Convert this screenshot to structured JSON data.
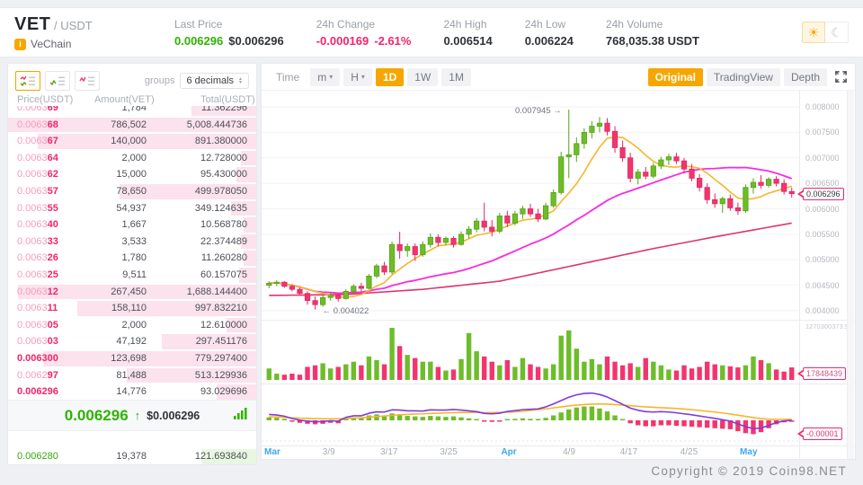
{
  "header": {
    "base": "VET",
    "separator": "/",
    "quote": "USDT",
    "coin_badge": "i",
    "coin_name": "VeChain",
    "stats": [
      {
        "label": "Last Price",
        "value": "0.006296",
        "value2": "$0.006296",
        "color": "green",
        "color2": "dark"
      },
      {
        "label": "24h Change",
        "value": "-0.000169",
        "value2": "-2.61%",
        "color": "red",
        "color2": "red"
      },
      {
        "label": "24h High",
        "value": "0.006514"
      },
      {
        "label": "24h Low",
        "value": "0.006224"
      },
      {
        "label": "24h Volume",
        "value": "768,035.38 USDT"
      }
    ],
    "theme": {
      "light_icon": "☀",
      "dark_icon": "☾"
    }
  },
  "orderbook": {
    "view_icons": [
      {
        "name": "orderbook-both-icon",
        "active": true
      },
      {
        "name": "orderbook-bids-icon",
        "active": false
      },
      {
        "name": "orderbook-asks-icon",
        "active": false
      }
    ],
    "groups_label": "groups",
    "decimals_value": "6 decimals",
    "columns": [
      "Price(USDT)",
      "Amount(VET)",
      "Total(USDT)"
    ],
    "asks": [
      {
        "price": "0.006369",
        "amount": "1,784",
        "total": "11.362296",
        "depth": 26
      },
      {
        "price": "0.006368",
        "amount": "786,502",
        "total": "5,008.444736",
        "depth": 100
      },
      {
        "price": "0.006367",
        "amount": "140,000",
        "total": "891.380000",
        "depth": 88
      },
      {
        "price": "0.006364",
        "amount": "2,000",
        "total": "12.728000",
        "depth": 6
      },
      {
        "price": "0.006362",
        "amount": "15,000",
        "total": "95.430000",
        "depth": 8
      },
      {
        "price": "0.006357",
        "amount": "78,650",
        "total": "499.978050",
        "depth": 55
      },
      {
        "price": "0.006355",
        "amount": "54,937",
        "total": "349.124635",
        "depth": 10
      },
      {
        "price": "0.006340",
        "amount": "1,667",
        "total": "10.568780",
        "depth": 5
      },
      {
        "price": "0.006333",
        "amount": "3,533",
        "total": "22.374489",
        "depth": 6
      },
      {
        "price": "0.006326",
        "amount": "1,780",
        "total": "11.260280",
        "depth": 5
      },
      {
        "price": "0.006325",
        "amount": "9,511",
        "total": "60.157075",
        "depth": 7
      },
      {
        "price": "0.006312",
        "amount": "267,450",
        "total": "1,688.144400",
        "depth": 96
      },
      {
        "price": "0.006311",
        "amount": "158,110",
        "total": "997.832210",
        "depth": 72
      },
      {
        "price": "0.006305",
        "amount": "2,000",
        "total": "12.610000",
        "depth": 12
      },
      {
        "price": "0.006303",
        "amount": "47,192",
        "total": "297.451176",
        "depth": 38
      },
      {
        "price": "0.006300",
        "amount": "123,698",
        "total": "779.297400",
        "depth": 86,
        "strong": true
      },
      {
        "price": "0.006297",
        "amount": "81,488",
        "total": "513.129936",
        "depth": 52
      },
      {
        "price": "0.006296",
        "amount": "14,776",
        "total": "93.029696",
        "depth": 16,
        "strong": true
      }
    ],
    "last": {
      "price": "0.006296",
      "arrow": "↑",
      "usd": "$0.006296"
    },
    "bids": [
      {
        "price": "0.006280",
        "amount": "19,378",
        "total": "121.693840",
        "depth": 22
      }
    ]
  },
  "chart_toolbar": {
    "time_label": "Time",
    "intervals": [
      {
        "label": "m",
        "caret": true,
        "active": false
      },
      {
        "label": "H",
        "caret": true,
        "active": false
      },
      {
        "label": "1D",
        "caret": false,
        "active": true
      },
      {
        "label": "1W",
        "caret": false,
        "active": false
      },
      {
        "label": "1M",
        "caret": false,
        "active": false
      }
    ],
    "views": [
      {
        "label": "Original",
        "active": true
      },
      {
        "label": "TradingView",
        "active": false
      },
      {
        "label": "Depth",
        "active": false
      }
    ]
  },
  "chart_data": {
    "type": "candlestick+volume+macd",
    "price_axis_labels": [
      "0.008000",
      "0.007500",
      "0.007000",
      "0.006500",
      "0.006000",
      "0.005500",
      "0.005000",
      "0.004500",
      "0.004000"
    ],
    "price_range": [
      0.004,
      0.008
    ],
    "current_price_tag": "0.006296",
    "high_annotation": "0.007945 →",
    "low_annotation": "← 0.004022",
    "volume_axis_max": "1270300373.90",
    "volume_tag": "17848439",
    "macd_tag": "-0.00001",
    "x_ticks": [
      {
        "label": "Mar",
        "em": true,
        "x": 0.02
      },
      {
        "label": "3/9",
        "em": false,
        "x": 0.125
      },
      {
        "label": "3/17",
        "em": false,
        "x": 0.237
      },
      {
        "label": "3/25",
        "em": false,
        "x": 0.348
      },
      {
        "label": "Apr",
        "em": true,
        "x": 0.46
      },
      {
        "label": "4/9",
        "em": false,
        "x": 0.572
      },
      {
        "label": "4/17",
        "em": false,
        "x": 0.683
      },
      {
        "label": "4/25",
        "em": false,
        "x": 0.795
      },
      {
        "label": "May",
        "em": true,
        "x": 0.906
      }
    ],
    "candles": [
      [
        0.0045,
        0.00458,
        0.00444,
        0.00454
      ],
      [
        0.00454,
        0.0046,
        0.00448,
        0.00456
      ],
      [
        0.00456,
        0.00458,
        0.00445,
        0.00448
      ],
      [
        0.00448,
        0.00452,
        0.00438,
        0.00442
      ],
      [
        0.00442,
        0.00446,
        0.0043,
        0.00434
      ],
      [
        0.00434,
        0.00438,
        0.00412,
        0.0042
      ],
      [
        0.0042,
        0.00428,
        0.004022,
        0.00412
      ],
      [
        0.00412,
        0.0043,
        0.00408,
        0.00426
      ],
      [
        0.00426,
        0.00436,
        0.0042,
        0.0043
      ],
      [
        0.0043,
        0.00434,
        0.00418,
        0.00424
      ],
      [
        0.00424,
        0.00442,
        0.00422,
        0.00438
      ],
      [
        0.00438,
        0.00452,
        0.00434,
        0.00448
      ],
      [
        0.00448,
        0.00455,
        0.00438,
        0.00444
      ],
      [
        0.00444,
        0.00472,
        0.00442,
        0.00468
      ],
      [
        0.00468,
        0.00492,
        0.00464,
        0.00488
      ],
      [
        0.00488,
        0.00496,
        0.0047,
        0.00476
      ],
      [
        0.00476,
        0.00536,
        0.00472,
        0.0053
      ],
      [
        0.0053,
        0.00555,
        0.00502,
        0.00518
      ],
      [
        0.00518,
        0.00532,
        0.00506,
        0.00526
      ],
      [
        0.00526,
        0.00532,
        0.00498,
        0.0051
      ],
      [
        0.0051,
        0.00536,
        0.00506,
        0.0053
      ],
      [
        0.0053,
        0.00552,
        0.00524,
        0.00544
      ],
      [
        0.00544,
        0.0055,
        0.00526,
        0.00534
      ],
      [
        0.00534,
        0.00546,
        0.00528,
        0.00542
      ],
      [
        0.00542,
        0.00546,
        0.00524,
        0.0053
      ],
      [
        0.0053,
        0.00556,
        0.00528,
        0.0055
      ],
      [
        0.0055,
        0.00566,
        0.00542,
        0.0056
      ],
      [
        0.0056,
        0.00582,
        0.00554,
        0.00576
      ],
      [
        0.00576,
        0.00612,
        0.00556,
        0.00564
      ],
      [
        0.00564,
        0.00578,
        0.00546,
        0.00556
      ],
      [
        0.00556,
        0.00592,
        0.00552,
        0.00586
      ],
      [
        0.00586,
        0.00596,
        0.00564,
        0.00572
      ],
      [
        0.00572,
        0.00596,
        0.00568,
        0.0059
      ],
      [
        0.0059,
        0.00606,
        0.0058,
        0.006
      ],
      [
        0.006,
        0.0061,
        0.00584,
        0.0059
      ],
      [
        0.0059,
        0.006,
        0.00574,
        0.0058
      ],
      [
        0.0058,
        0.00612,
        0.00578,
        0.00606
      ],
      [
        0.00606,
        0.00638,
        0.00602,
        0.00632
      ],
      [
        0.00632,
        0.00712,
        0.00628,
        0.00702
      ],
      [
        0.00702,
        0.007945,
        0.0066,
        0.00706
      ],
      [
        0.00706,
        0.0074,
        0.00692,
        0.00728
      ],
      [
        0.00728,
        0.00758,
        0.00718,
        0.0075
      ],
      [
        0.0075,
        0.00772,
        0.00738,
        0.00762
      ],
      [
        0.00762,
        0.0078,
        0.0075,
        0.00768
      ],
      [
        0.00768,
        0.00778,
        0.00744,
        0.00752
      ],
      [
        0.00752,
        0.00762,
        0.0071,
        0.0072
      ],
      [
        0.0072,
        0.00734,
        0.00692,
        0.007
      ],
      [
        0.007,
        0.0071,
        0.00652,
        0.0066
      ],
      [
        0.0066,
        0.00678,
        0.00648,
        0.00672
      ],
      [
        0.00672,
        0.00682,
        0.00658,
        0.00664
      ],
      [
        0.00664,
        0.0069,
        0.0066,
        0.00684
      ],
      [
        0.00684,
        0.00702,
        0.00678,
        0.00696
      ],
      [
        0.00696,
        0.00708,
        0.00686,
        0.00702
      ],
      [
        0.00702,
        0.0071,
        0.00688,
        0.00694
      ],
      [
        0.00694,
        0.007,
        0.0067,
        0.00678
      ],
      [
        0.00678,
        0.00688,
        0.00654,
        0.0066
      ],
      [
        0.0066,
        0.00668,
        0.00634,
        0.00642
      ],
      [
        0.00642,
        0.0065,
        0.0061,
        0.00618
      ],
      [
        0.00618,
        0.0063,
        0.00602,
        0.0061
      ],
      [
        0.0061,
        0.00624,
        0.00592,
        0.0062
      ],
      [
        0.0062,
        0.00628,
        0.00596,
        0.00602
      ],
      [
        0.00602,
        0.00612,
        0.00588,
        0.00596
      ],
      [
        0.00596,
        0.00648,
        0.00592,
        0.00642
      ],
      [
        0.00642,
        0.0066,
        0.0063,
        0.00652
      ],
      [
        0.00652,
        0.00666,
        0.0064,
        0.00646
      ],
      [
        0.00646,
        0.00662,
        0.00642,
        0.00658
      ],
      [
        0.00658,
        0.00664,
        0.00644,
        0.0065
      ],
      [
        0.0065,
        0.00658,
        0.00628,
        0.00634
      ],
      [
        0.00634,
        0.00642,
        0.00622,
        0.006296
      ]
    ],
    "volume": [
      0.22,
      0.12,
      0.1,
      0.12,
      0.1,
      0.25,
      0.28,
      0.32,
      0.22,
      0.25,
      0.3,
      0.35,
      0.28,
      0.45,
      0.38,
      0.3,
      1.0,
      0.65,
      0.48,
      0.42,
      0.35,
      0.35,
      0.25,
      0.18,
      0.2,
      0.4,
      0.9,
      0.55,
      0.45,
      0.35,
      0.28,
      0.38,
      0.25,
      0.42,
      0.3,
      0.25,
      0.22,
      0.3,
      0.85,
      0.95,
      0.6,
      0.35,
      0.4,
      0.3,
      0.45,
      0.35,
      0.28,
      0.32,
      0.25,
      0.42,
      0.35,
      0.28,
      0.2,
      0.18,
      0.28,
      0.22,
      0.25,
      0.35,
      0.3,
      0.28,
      0.26,
      0.24,
      0.28,
      0.45,
      0.38,
      0.32,
      0.2,
      0.16,
      0.24
    ],
    "macd": {
      "histogram": [
        0.06,
        0.05,
        0.03,
        -0.02,
        -0.05,
        -0.07,
        -0.08,
        -0.07,
        -0.05,
        -0.06,
        0.03,
        0.06,
        0.05,
        0.1,
        0.12,
        0.1,
        0.14,
        0.12,
        0.09,
        0.08,
        0.07,
        0.09,
        0.08,
        0.07,
        0.08,
        0.06,
        0.04,
        0.02,
        -0.02,
        -0.03,
        -0.02,
        0.02,
        0.03,
        0.04,
        0.03,
        0.02,
        0.05,
        0.1,
        0.16,
        0.22,
        0.26,
        0.28,
        0.28,
        0.24,
        0.18,
        0.1,
        0.02,
        -0.06,
        -0.1,
        -0.12,
        -0.12,
        -0.1,
        -0.1,
        -0.11,
        -0.12,
        -0.13,
        -0.14,
        -0.15,
        -0.16,
        -0.17,
        -0.18,
        -0.22,
        -0.26,
        -0.28,
        -0.24,
        -0.16,
        -0.08,
        -0.04,
        -0.03
      ],
      "signal": [
        0.18,
        0.17,
        0.15,
        0.13,
        0.11,
        0.1,
        0.09,
        0.08,
        0.08,
        0.08,
        0.09,
        0.11,
        0.13,
        0.16,
        0.19,
        0.22,
        0.25,
        0.28,
        0.3,
        0.32,
        0.33,
        0.35,
        0.36,
        0.38,
        0.39,
        0.4,
        0.4,
        0.4,
        0.39,
        0.39,
        0.4,
        0.41,
        0.43,
        0.46,
        0.5,
        0.54,
        0.58,
        0.63,
        0.68,
        0.73,
        0.77,
        0.8,
        0.82,
        0.83,
        0.82,
        0.8,
        0.77,
        0.74,
        0.71,
        0.68,
        0.66,
        0.64,
        0.62,
        0.6,
        0.57,
        0.54,
        0.5,
        0.46,
        0.42,
        0.37,
        0.32,
        0.26,
        0.2,
        0.14,
        0.09,
        0.06,
        0.05,
        0.05,
        0.06
      ]
    },
    "ma_slow_anchors": [
      [
        0,
        0.0043
      ],
      [
        10,
        0.00432
      ],
      [
        20,
        0.00442
      ],
      [
        30,
        0.00458
      ],
      [
        40,
        0.0049
      ],
      [
        50,
        0.00522
      ],
      [
        58,
        0.00545
      ],
      [
        68,
        0.00572
      ]
    ],
    "colors": {
      "up": "#6dbd2a",
      "up_stroke": "#55a313",
      "down": "#f2356e",
      "down_stroke": "#e02762",
      "ma_fast": "#f7b52c",
      "ma_mid": "#f92be0",
      "ma_slow": "#e0336b",
      "macd_line": "#7e3bdc",
      "macd_signal": "#f7b52c",
      "grid": "#f2f2f5",
      "annotation": "#6f747b"
    }
  },
  "footer": {
    "copyright": "Copyright © 2019 Coin98.NET"
  }
}
